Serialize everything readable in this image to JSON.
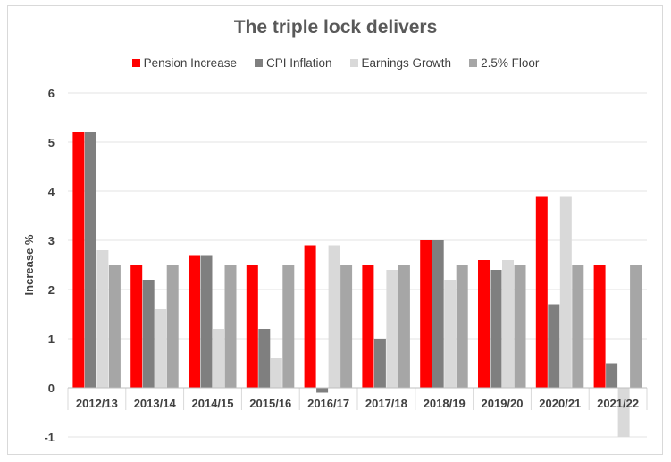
{
  "chart_data": {
    "type": "bar",
    "title": "The triple lock delivers",
    "ylabel": "Increase %",
    "xlabel": "",
    "ylim": [
      -1,
      6
    ],
    "yticks": [
      -1,
      0,
      1,
      2,
      3,
      4,
      5,
      6
    ],
    "ytick_labels": [
      "-1",
      "0",
      "1",
      "2",
      "3",
      "4",
      "5",
      "6"
    ],
    "grid": true,
    "legend_position": "top",
    "categories": [
      "2012/13",
      "2013/14",
      "2014/15",
      "2015/16",
      "2016/17",
      "2017/18",
      "2018/19",
      "2019/20",
      "2020/21",
      "2021/22"
    ],
    "series": [
      {
        "name": "Pension Increase",
        "color": "#ff0000",
        "values": [
          5.2,
          2.5,
          2.7,
          2.5,
          2.9,
          2.5,
          3.0,
          2.6,
          3.9,
          2.5
        ]
      },
      {
        "name": "CPI Inflation",
        "color": "#7f7f7f",
        "values": [
          5.2,
          2.2,
          2.7,
          1.2,
          -0.1,
          1.0,
          3.0,
          2.4,
          1.7,
          0.5
        ]
      },
      {
        "name": "Earnings Growth",
        "color": "#d9d9d9",
        "values": [
          2.8,
          1.6,
          1.2,
          0.6,
          2.9,
          2.4,
          2.2,
          2.6,
          3.9,
          -1.0
        ]
      },
      {
        "name": "2.5% Floor",
        "color": "#a6a6a6",
        "values": [
          2.5,
          2.5,
          2.5,
          2.5,
          2.5,
          2.5,
          2.5,
          2.5,
          2.5,
          2.5
        ]
      }
    ]
  }
}
